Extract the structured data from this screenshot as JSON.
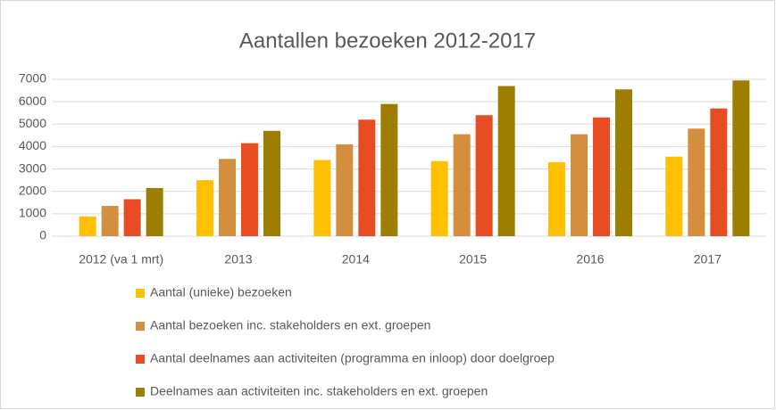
{
  "chart_data": {
    "type": "bar",
    "title": "Aantallen bezoeken  2012-2017",
    "categories": [
      "2012 (va 1 mrt)",
      "2013",
      "2014",
      "2015",
      "2016",
      "2017"
    ],
    "series": [
      {
        "name": "Aantal (unieke) bezoeken",
        "color": "#ffc000",
        "values": [
          880,
          2500,
          3400,
          3350,
          3300,
          3550
        ]
      },
      {
        "name": "Aantal bezoeken  inc. stakeholders en ext. groepen",
        "color": "#d48f3e",
        "values": [
          1350,
          3450,
          4100,
          4550,
          4550,
          4800
        ]
      },
      {
        "name": "Aantal deelnames aan activiteiten (programma en inloop) door doelgroep",
        "color": "#e84c22",
        "values": [
          1650,
          4150,
          5200,
          5400,
          5300,
          5700
        ]
      },
      {
        "name": "Deelnames aan activiteiten inc. stakeholders en ext. groepen",
        "color": "#9e7e00",
        "values": [
          2150,
          4700,
          5900,
          6700,
          6550,
          6950
        ]
      }
    ],
    "ylim": [
      0,
      7000
    ],
    "yticks": [
      0,
      1000,
      2000,
      3000,
      4000,
      5000,
      6000,
      7000
    ],
    "grid": true
  }
}
